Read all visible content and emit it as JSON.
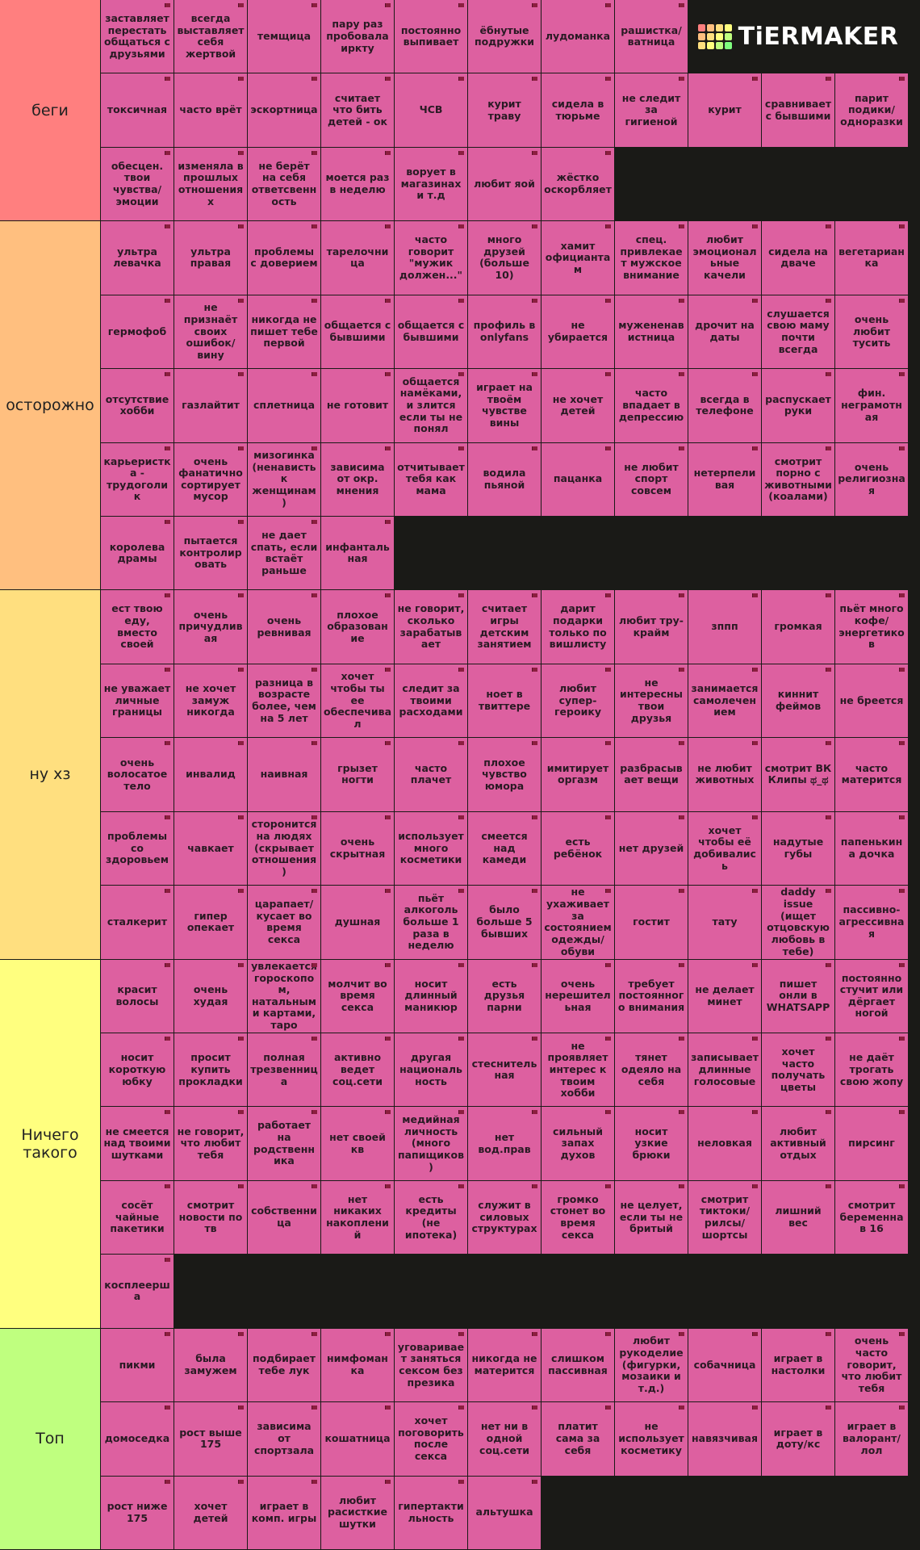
{
  "logo": "TiERMAKER",
  "tiers": [
    {
      "label": "беги",
      "color": "#ff7f7f",
      "rows": 3,
      "items": [
        "заставляет перестать общаться с друзьями",
        "всегда выставляет себя жертвой",
        "темщица",
        "пару раз пробовала иркту",
        "постоянно выпивает",
        "ёбнутые подружки",
        "лудоманка",
        "рашистка/ ватница",
        "токсичная",
        "часто врёт",
        "эскортница",
        "считает что бить детей - ок",
        "ЧСВ",
        "курит траву",
        "сидела в тюрьме",
        "не следит за гигиеной",
        "курит",
        "сравнивает с бывшими",
        "парит подики/ одноразки",
        "обесцен. твои чувства/ эмоции",
        "изменяла в прошлых отношениях",
        "не берёт на себя ответсвенность",
        "моется раз в неделю",
        "ворует в магазинах и т.д",
        "любит яой",
        "жёстко оскорбляет"
      ]
    },
    {
      "label": "осторожно",
      "color": "#ffbf7f",
      "rows": 5,
      "items": [
        "ультра левачка",
        "ультра правая",
        "проблемы с доверием",
        "тарелочница",
        "часто говорит \"мужик должен...\"",
        "много друзей (больше 10)",
        "хамит официантам",
        "спец. привлекает мужское внимание",
        "любит эмоциональные качели",
        "сидела на дваче",
        "вегетарианка",
        "гермофоб",
        "не признаёт своих ошибок/ вину",
        "никогда не пишет тебе первой",
        "общается с бывшими",
        "общается с бывшими",
        "профиль в onlyfans",
        "не убирается",
        "мужененавистница",
        "дрочит на даты",
        "слушается свою маму почти всегда",
        "очень любит тусить",
        "отсутствие хобби",
        "газлайтит",
        "сплетница",
        "не готовит",
        "общается намёками, и злится если ты не понял",
        "играет на твоём чувстве вины",
        "не хочет детей",
        "часто впадает в депрессию",
        "всегда в телефоне",
        "распускает руки",
        "фин. неграмотная",
        "карьеристка - трудоголик",
        "очень фанатично сортирует мусор",
        "мизогинка (ненависть к женщинам)",
        "зависима от окр. мнения",
        "отчитывает тебя как мама",
        "водила пьяной",
        "пацанка",
        "не любит спорт совсем",
        "нетерпеливая",
        "смотрит порно с животными (коалами)",
        "очень религиозная",
        "королева драмы",
        "пытается контролировать",
        "не дает спать, если встаёт раньше",
        "инфантальная"
      ]
    },
    {
      "label": "ну хз",
      "color": "#ffdf7f",
      "rows": 5,
      "items": [
        "ест твою еду, вместо своей",
        "очень причудливая",
        "очень ревнивая",
        "плохое образование",
        "не говорит, сколько зарабатывает",
        "считает игры детским занятием",
        "дарит подарки только по вишлисту",
        "любит тру-крайм",
        "зппп",
        "громкая",
        "пьёт много кофе/ энергетиков",
        "не уважает личные границы",
        "не хочет замуж никогда",
        "разница в возрасте более, чем на 5 лет",
        "хочет чтобы ты ее обеспечивал",
        "следит за твоими расходами",
        "ноет в твиттере",
        "любит супер-героику",
        "не интересны твои друзья",
        "занимается самолечением",
        "киннит феймов",
        "не бреется",
        "очень волосатое тело",
        "инвалид",
        "наивная",
        "грызет ногти",
        "часто плачет",
        "плохое чувство юмора",
        "имитирует оргазм",
        "разбрасывает вещи",
        "не любит животных",
        "смотрит ВК Клипы ಥ_ಥ",
        "часто матерится",
        "проблемы со здоровьем",
        "чавкает",
        "сторонится на людях (скрывает отношения)",
        "очень скрытная",
        "использует много косметики",
        "смеется над камеди",
        "есть ребёнок",
        "нет друзей",
        "хочет чтобы её добивались",
        "надутые губы",
        "папенькина дочка",
        "сталкерит",
        "гипер опекает",
        "царапает/ кусает во время секса",
        "душная",
        "пьёт алкоголь больше 1 раза в неделю",
        "было больше 5 бывших",
        "не ухаживает за состоянием одежды/ обуви",
        "гостит",
        "тату",
        "daddy issue (ищет отцовскую любовь в тебе)",
        "пассивно-агрессивная"
      ]
    },
    {
      "label": "Ничего такого",
      "color": "#ffff7f",
      "rows": 5,
      "items": [
        "красит волосы",
        "очень худая",
        "увлекается гороскопом, натальными картами, таро",
        "молчит во время секса",
        "носит длинный маникюр",
        "есть друзья парни",
        "очень нерешительная",
        "требует постоянного внимания",
        "не делает минет",
        "пишет онли в WHATSAPP",
        "постоянно стучит или дёргает ногой",
        "носит короткую юбку",
        "просит купить прокладки",
        "полная трезвенница",
        "активно ведет соц.сети",
        "другая национальность",
        "стеснительная",
        "не проявляет интерес к твоим хобби",
        "тянет одеяло на себя",
        "записывает длинные голосовые",
        "хочет часто получать цветы",
        "не даёт трогать свою жопу",
        "не смеется над твоими шутками",
        "не говорит, что любит тебя",
        "работает на родственника",
        "нет своей кв",
        "медийная личность (много папищиков)",
        "нет вод.прав",
        "сильный запах духов",
        "носит узкие брюки",
        "неловкая",
        "любит активный отдых",
        "пирсинг",
        "сосёт чайные пакетики",
        "смотрит новости по тв",
        "собственница",
        "нет никаких накоплений",
        "есть кредиты (не ипотека)",
        "служит в силовых структурах",
        "громко стонет во время секса",
        "не целует, если ты не бритый",
        "смотрит тиктоки/ рилсы/ шортсы",
        "лишний вес",
        "смотрит беременна в 16",
        "косплеерша"
      ]
    },
    {
      "label": "Топ",
      "color": "#bfff7f",
      "rows": 3,
      "items": [
        "пикми",
        "была замужем",
        "подбирает тебе лук",
        "нимфоманка",
        "уговаривает заняться сексом без презика",
        "никогда не матерится",
        "слишком пассивная",
        "любит рукоделие (фигурки, мозаики и т.д.)",
        "собачница",
        "играет в настолки",
        "очень часто говорит, что любит тебя",
        "домоседка",
        "рост выше 175",
        "зависима от спортзала",
        "кошатница",
        "хочет поговорить после секса",
        "нет ни в одной соц.сети",
        "платит сама за себя",
        "не использует косметику",
        "навязчивая",
        "играет в доту/кс",
        "играет в валорант/ лол",
        "рост ниже 175",
        "хочет детей",
        "играет в комп. игры",
        "любит расисткие шутки",
        "гипертактильность",
        "альтушка"
      ]
    }
  ]
}
